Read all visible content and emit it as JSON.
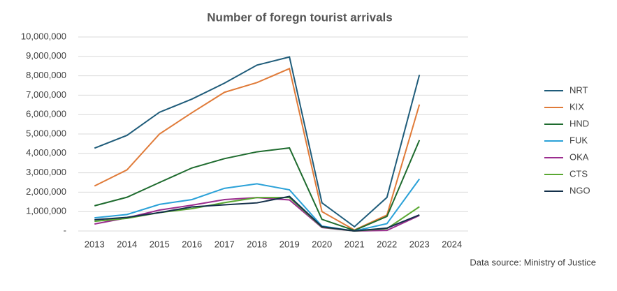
{
  "chart_data": {
    "type": "line",
    "title": "Number of foregn tourist arrivals",
    "source": "Data source: Ministry of Justice",
    "categories": [
      "2013",
      "2014",
      "2015",
      "2016",
      "2017",
      "2018",
      "2019",
      "2020",
      "2021",
      "2022",
      "2023",
      "2024"
    ],
    "series": [
      {
        "name": "NRT",
        "color": "#1f5c7a",
        "values": [
          4270000,
          4930000,
          6120000,
          6800000,
          7620000,
          8550000,
          8970000,
          1450000,
          220000,
          1730000,
          8050000,
          null
        ]
      },
      {
        "name": "KIX",
        "color": "#e07b39",
        "values": [
          2320000,
          3150000,
          5000000,
          6100000,
          7150000,
          7650000,
          8370000,
          1000000,
          50000,
          820000,
          6520000,
          null
        ]
      },
      {
        "name": "HND",
        "color": "#1e6b2e",
        "values": [
          1300000,
          1740000,
          2500000,
          3250000,
          3730000,
          4080000,
          4280000,
          600000,
          30000,
          750000,
          4680000,
          null
        ]
      },
      {
        "name": "FUK",
        "color": "#2aa1d8",
        "values": [
          680000,
          850000,
          1370000,
          1620000,
          2200000,
          2430000,
          2120000,
          250000,
          0,
          380000,
          2680000,
          null
        ]
      },
      {
        "name": "OKA",
        "color": "#9b2d8f",
        "values": [
          360000,
          680000,
          1080000,
          1330000,
          1620000,
          1720000,
          1600000,
          180000,
          0,
          30000,
          800000,
          null
        ]
      },
      {
        "name": "CTS",
        "color": "#5aa832",
        "values": [
          500000,
          650000,
          950000,
          1150000,
          1460000,
          1720000,
          1720000,
          200000,
          0,
          120000,
          1250000,
          null
        ]
      },
      {
        "name": "NGO",
        "color": "#14304a",
        "values": [
          580000,
          700000,
          950000,
          1240000,
          1350000,
          1450000,
          1780000,
          220000,
          0,
          150000,
          830000,
          null
        ]
      }
    ],
    "ylim": [
      0,
      10000000
    ],
    "yticks": [
      {
        "value": 0,
        "label": "-"
      },
      {
        "value": 1000000,
        "label": "1,000,000"
      },
      {
        "value": 2000000,
        "label": "2,000,000"
      },
      {
        "value": 3000000,
        "label": "3,000,000"
      },
      {
        "value": 4000000,
        "label": "4,000,000"
      },
      {
        "value": 5000000,
        "label": "5,000,000"
      },
      {
        "value": 6000000,
        "label": "6,000,000"
      },
      {
        "value": 7000000,
        "label": "7,000,000"
      },
      {
        "value": 8000000,
        "label": "8,000,000"
      },
      {
        "value": 9000000,
        "label": "9,000,000"
      },
      {
        "value": 10000000,
        "label": "10,000,000"
      }
    ],
    "grid": true,
    "legend": "right"
  }
}
